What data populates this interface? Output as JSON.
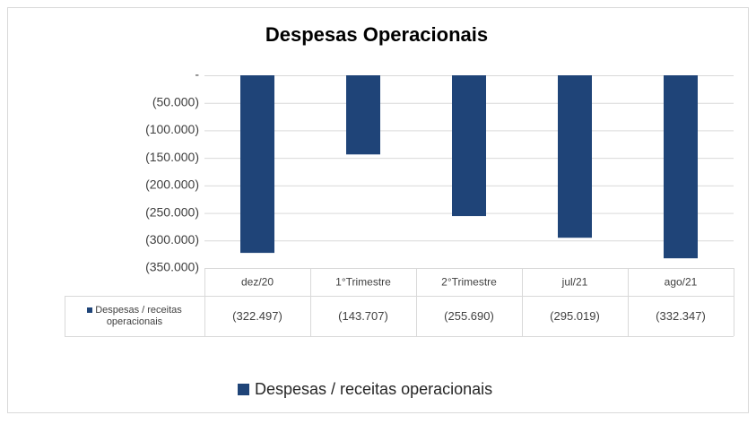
{
  "chart_data": {
    "type": "bar",
    "title": "Despesas Operacionais",
    "categories": [
      "dez/20",
      "1°Trimestre",
      "2°Trimestre",
      "jul/21",
      "ago/21"
    ],
    "series": [
      {
        "name": "Despesas / receitas operacionais",
        "color": "#1f4478",
        "values": [
          -322497,
          -143707,
          -255690,
          -295019,
          -332347
        ],
        "value_labels": [
          "(322.497)",
          "(143.707)",
          "(255.690)",
          "(295.019)",
          "(332.347)"
        ]
      }
    ],
    "ylim": [
      -350000,
      0
    ],
    "yticks": [
      {
        "value": 0,
        "label": "-"
      },
      {
        "value": -50000,
        "label": "(50.000)"
      },
      {
        "value": -100000,
        "label": "(100.000)"
      },
      {
        "value": -150000,
        "label": "(150.000)"
      },
      {
        "value": -200000,
        "label": "(200.000)"
      },
      {
        "value": -250000,
        "label": "(250.000)"
      },
      {
        "value": -300000,
        "label": "(300.000)"
      },
      {
        "value": -350000,
        "label": "(350.000)"
      }
    ],
    "grid": true,
    "legend": "bottom"
  }
}
